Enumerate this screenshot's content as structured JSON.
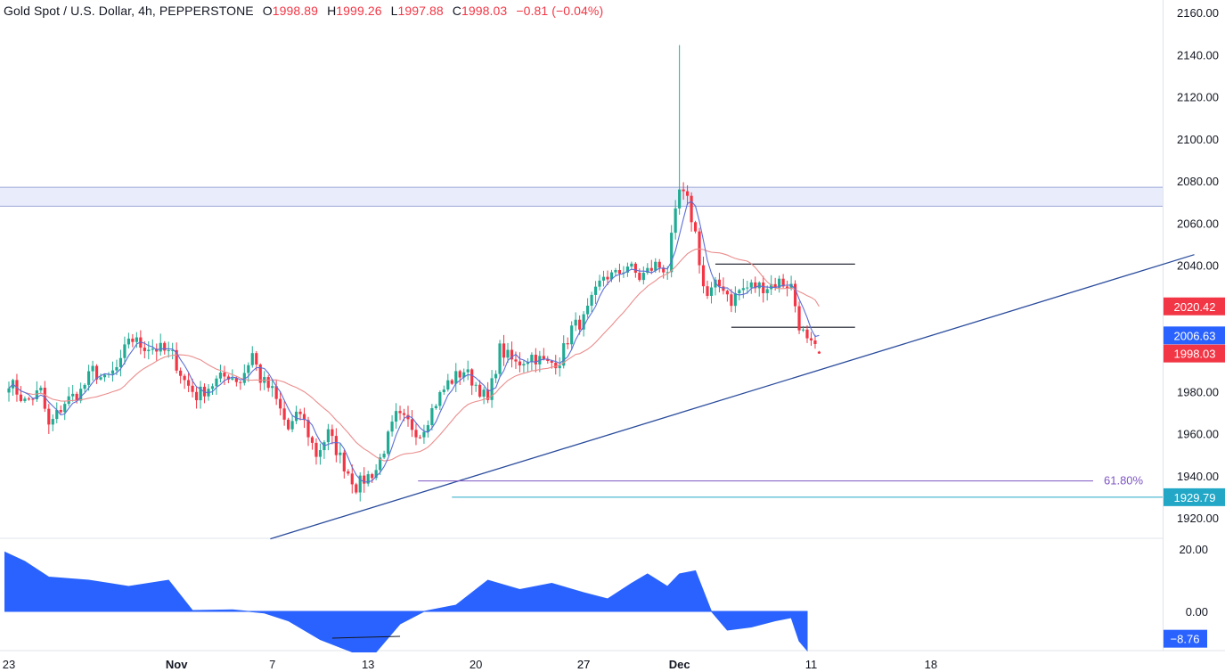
{
  "header": {
    "symbol": "Gold Spot / U.S. Dollar, 4h, PEPPERSTONE",
    "open_label": "O",
    "open": "1998.89",
    "high_label": "H",
    "high": "1999.26",
    "low_label": "L",
    "low": "1997.88",
    "close_label": "C",
    "close": "1998.03",
    "change": "−0.81 (−0.04%)"
  },
  "colors": {
    "up": "#22ab94",
    "down": "#f23645",
    "ma_fast": "#5b6fd6",
    "ma_slow": "#eb8d8d",
    "trendline": "#2a4c9c",
    "zone_fill": "#e9edfb",
    "zone_border": "#9aa7d6",
    "fib": "#7e57c2",
    "support": "#22a7c7",
    "osc": "#2962ff",
    "badge_red": "#f23645",
    "badge_blue": "#2962ff"
  },
  "price_axis": {
    "ticks": [
      "2160.00",
      "2140.00",
      "2120.00",
      "2100.00",
      "2080.00",
      "2060.00",
      "2040.00",
      "1980.00",
      "1960.00",
      "1940.00",
      "1920.00"
    ],
    "range": [
      1910,
      2163
    ]
  },
  "osc_axis": {
    "ticks": [
      "20.00",
      "0.00"
    ],
    "range": [
      -14,
      24
    ]
  },
  "time_axis": {
    "labels": [
      "23",
      "27",
      "Nov",
      "7",
      "13",
      "20",
      "27",
      "Dec",
      "11",
      "18"
    ],
    "bold": [
      "Nov",
      "Dec"
    ]
  },
  "badges": {
    "ma_slow": "2020.42",
    "ma_fast": "2006.63",
    "last": "1998.03",
    "support": "1929.79",
    "osc_last": "−8.76"
  },
  "annotations": {
    "fib_label": "61.80%",
    "zone": [
      2068,
      2077
    ],
    "box_top": 2040.5,
    "box_bottom": 2010.5,
    "fib_level": 1937.5,
    "support_level": 1929.79,
    "trendline": [
      {
        "x": 65.5,
        "y": 1910
      },
      {
        "x": 297,
        "y": 2045
      }
    ]
  },
  "chart_data": {
    "type": "candlestick",
    "title": "Gold Spot / U.S. Dollar, 4h, PEPPERSTONE",
    "x_units": "4h bars (0 = Oct 23 open)",
    "x_ticks": {
      "23": 0,
      "27": 144,
      "Nov": 42,
      "7": 66,
      "13": 90,
      "20": 117,
      "Dec": 168,
      "11": 201,
      "18": 231
    },
    "waypoints": [
      [
        0,
        1985
      ],
      [
        4,
        1975
      ],
      [
        8,
        1980
      ],
      [
        10,
        1963
      ],
      [
        14,
        1975
      ],
      [
        18,
        1980
      ],
      [
        21,
        1990
      ],
      [
        24,
        1985
      ],
      [
        28,
        1993
      ],
      [
        30,
        2006
      ],
      [
        33,
        2002
      ],
      [
        38,
        2000
      ],
      [
        41,
        1997
      ],
      [
        44,
        1985
      ],
      [
        47,
        1978
      ],
      [
        52,
        1985
      ],
      [
        55,
        1988
      ],
      [
        58,
        1985
      ],
      [
        61,
        1998
      ],
      [
        63,
        1986
      ],
      [
        66,
        1980
      ],
      [
        70,
        1962
      ],
      [
        73,
        1970
      ],
      [
        77,
        1950
      ],
      [
        80,
        1960
      ],
      [
        84,
        1945
      ],
      [
        87,
        1935
      ],
      [
        92,
        1943
      ],
      [
        97,
        1968
      ],
      [
        100,
        1965
      ],
      [
        103,
        1960
      ],
      [
        107,
        1975
      ],
      [
        110,
        1984
      ],
      [
        114,
        1990
      ],
      [
        118,
        1981
      ],
      [
        120,
        1975
      ],
      [
        123,
        2000
      ],
      [
        127,
        1993
      ],
      [
        131,
        1997
      ],
      [
        135,
        1993
      ],
      [
        138,
        1995
      ],
      [
        141,
        2010
      ],
      [
        144,
        2014
      ],
      [
        149,
        2035
      ],
      [
        152,
        2035
      ],
      [
        155,
        2040
      ],
      [
        158,
        2034
      ],
      [
        162,
        2040
      ],
      [
        165,
        2038
      ],
      [
        166,
        2052
      ],
      [
        168,
        2075
      ],
      [
        170,
        2070
      ],
      [
        172,
        2055
      ],
      [
        174,
        2030
      ],
      [
        175,
        2025
      ],
      [
        177,
        2030
      ],
      [
        179,
        2030
      ],
      [
        181,
        2023
      ],
      [
        183,
        2028
      ],
      [
        186,
        2030
      ],
      [
        190,
        2030
      ],
      [
        193,
        2032
      ],
      [
        196,
        2030
      ],
      [
        198,
        2012
      ],
      [
        200,
        2003
      ],
      [
        203,
        1998
      ]
    ],
    "spike": {
      "bar": 168,
      "high": 2144.5
    },
    "last_bar": 203,
    "ohlc_last": {
      "open": 1998.89,
      "high": 1999.26,
      "low": 1997.88,
      "close": 1998.03
    },
    "indicators": {
      "ma_fast": {
        "period": 5,
        "last": 2006.63
      },
      "ma_slow": {
        "period": 20,
        "last": 2020.42
      },
      "oscillator": {
        "last": -8.76,
        "waypoints": [
          [
            -1,
            19
          ],
          [
            4,
            16
          ],
          [
            10,
            11
          ],
          [
            20,
            10
          ],
          [
            30,
            8
          ],
          [
            40,
            10
          ],
          [
            46,
            0.3
          ],
          [
            56,
            0.5
          ],
          [
            64,
            -0.5
          ],
          [
            70,
            -3
          ],
          [
            78,
            -9
          ],
          [
            86,
            -13
          ],
          [
            92,
            -13
          ],
          [
            98,
            -4
          ],
          [
            104,
            0
          ],
          [
            112,
            2
          ],
          [
            120,
            10
          ],
          [
            128,
            7
          ],
          [
            136,
            9
          ],
          [
            144,
            6
          ],
          [
            150,
            4
          ],
          [
            156,
            9
          ],
          [
            160,
            12
          ],
          [
            165,
            8
          ],
          [
            168,
            12
          ],
          [
            172,
            13
          ],
          [
            176,
            0
          ],
          [
            180,
            -6
          ],
          [
            186,
            -5
          ],
          [
            192,
            -3
          ],
          [
            196,
            -2
          ],
          [
            198,
            -9.5
          ],
          [
            200,
            -12.5
          ]
        ]
      }
    }
  }
}
